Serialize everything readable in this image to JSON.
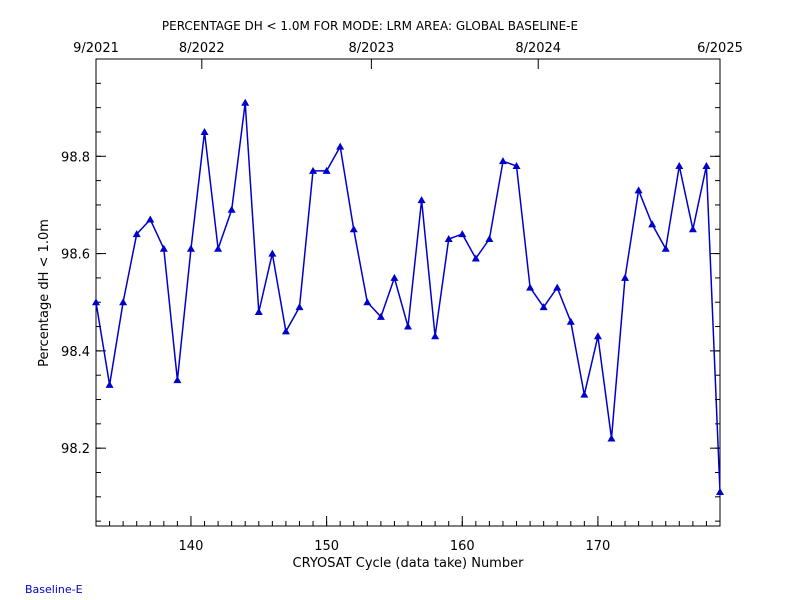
{
  "chart_data": {
    "type": "line",
    "title": "PERCENTAGE DH < 1.0M FOR MODE: LRM AREA: GLOBAL BASELINE-E",
    "xlabel": "CRYOSAT Cycle (data take) Number",
    "ylabel": "Percentage dH < 1.0m",
    "xlim": [
      133,
      179
    ],
    "ylim": [
      98.04,
      99.0
    ],
    "x_ticks": [
      140,
      150,
      160,
      170
    ],
    "y_ticks": [
      98.2,
      98.4,
      98.6,
      98.8
    ],
    "top_axis_ticks": [
      {
        "x": 133,
        "label": "9/2021"
      },
      {
        "x": 140.8,
        "label": "8/2022"
      },
      {
        "x": 153.3,
        "label": "8/2023"
      },
      {
        "x": 165.6,
        "label": "8/2024"
      },
      {
        "x": 179,
        "label": "6/2025"
      }
    ],
    "line_color": "#0000cc",
    "marker": "triangle",
    "grid": false,
    "x": [
      133,
      134,
      135,
      136,
      137,
      138,
      139,
      140,
      141,
      142,
      143,
      144,
      145,
      146,
      147,
      148,
      149,
      150,
      151,
      152,
      153,
      154,
      155,
      156,
      157,
      158,
      159,
      160,
      161,
      162,
      163,
      164,
      165,
      166,
      167,
      168,
      169,
      170,
      171,
      172,
      173,
      174,
      175,
      176,
      177,
      178,
      179
    ],
    "y": [
      98.5,
      98.33,
      98.5,
      98.64,
      98.67,
      98.61,
      98.34,
      98.61,
      98.85,
      98.61,
      98.69,
      98.91,
      98.48,
      98.6,
      98.44,
      98.49,
      98.77,
      98.77,
      98.82,
      98.65,
      98.5,
      98.47,
      98.55,
      98.45,
      98.71,
      98.43,
      98.63,
      98.64,
      98.59,
      98.63,
      98.79,
      98.78,
      98.53,
      98.49,
      98.53,
      98.46,
      98.31,
      98.43,
      98.22,
      98.55,
      98.73,
      98.66,
      98.61,
      98.78,
      98.65,
      98.78,
      98.11
    ]
  },
  "footer": {
    "label": "Baseline-E"
  }
}
